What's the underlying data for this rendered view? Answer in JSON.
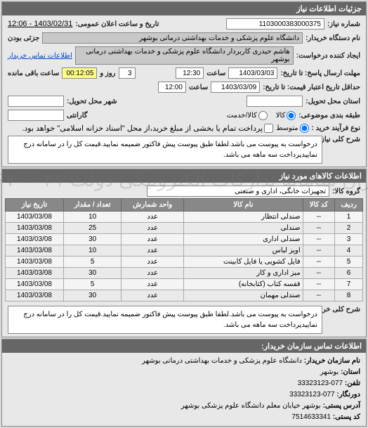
{
  "watermark": "ستاد ایران\nسامانه تدارکات الکترونیکی دولت\n۰۲۱-۸۸۳۴۹۶۷۰",
  "panel1": {
    "title": "جزئیات اطلاعات نیاز",
    "need_no_label": "شماره نیاز:",
    "need_no": "1103000383000375",
    "announce_label": "تاریخ و ساعت اعلان عمومی:",
    "announce": "1403/02/31 - 12:06",
    "buyer_org_label": "نام دستگاه خریدار:",
    "buyer_org": "دانشگاه علوم پزشکی و خدمات بهداشتی درمانی بوشهر",
    "branch_label": "جزئی بودن",
    "requester_label": "ایجاد کننده درخواست:",
    "requester": "هاشم حیدری کاربردار دانشگاه علوم پزشکی و خدمات بهداشتی درمانی بوشهر",
    "contact_link": "اطلاعات تماس خریدار",
    "deadline_send_label": "مهلت ارسال پاسخ: تا تاریخ:",
    "deadline_date": "1403/03/03",
    "time_label": "ساعت",
    "deadline_time": "12:30",
    "remain_days": "3",
    "remain_days_label": "روز و",
    "remain_time": "00:12:05",
    "remain_time_label": "ساعت باقی مانده",
    "price_valid_label": "حداقل تاریخ اعتبار قیمت: تا تاریخ:",
    "price_valid_date": "1403/03/09",
    "price_valid_time": "12:00",
    "delivery_loc_label": "استان محل تحویل:",
    "delivery_city_label": "شهر محل تحویل:",
    "category_label": "طبقه بندی موضوعی:",
    "cat_option1": "کالا",
    "cat_option2": "کالا/خدمت",
    "warranty_label": "گارانتی",
    "purchase_type_label": "نوع فرآیند خرید :",
    "pt_option1": "متوسط",
    "pt_note": "پرداخت تمام یا بخشی از مبلغ خرید،از محل \"اسناد خزانه اسلامی\" خواهد بود.",
    "desc_label": "شرح کلی نیاز:",
    "desc": "درخواست به پیوست می باشد.لطفا طبق پیوست پیش فاکتور ضمیمه نمایید.قیمت کل را در سامانه درج نماییدپرداخت سه ماهه می باشد."
  },
  "panel2": {
    "title": "اطلاعات کالاهای مورد نیاز",
    "group_label": "گروه کالا:",
    "group": "تجهیزات خانگی، اداری و صنعتی",
    "columns": [
      "ردیف",
      "کد کالا",
      "نام کالا",
      "واحد شمارش",
      "تعداد / مقدار",
      "تاریخ نیاز"
    ],
    "rows": [
      [
        "1",
        "--",
        "صندلی انتظار",
        "عدد",
        "10",
        "1403/03/08"
      ],
      [
        "2",
        "--",
        "صندلی",
        "عدد",
        "25",
        "1403/03/08"
      ],
      [
        "3",
        "--",
        "صندلی اداری",
        "عدد",
        "30",
        "1403/03/08"
      ],
      [
        "4",
        "--",
        "اویز لباس",
        "عدد",
        "10",
        "1403/03/08"
      ],
      [
        "5",
        "--",
        "فایل کشویی یا فایل کابینت",
        "عدد",
        "5",
        "1403/03/08"
      ],
      [
        "6",
        "--",
        "میز اداری و کار",
        "عدد",
        "30",
        "1403/03/08"
      ],
      [
        "7",
        "--",
        "قفسه کتاب (کتابخانه)",
        "عدد",
        "5",
        "1403/03/08"
      ],
      [
        "8",
        "--",
        "صندلی مهمان",
        "عدد",
        "30",
        "1403/03/08"
      ]
    ],
    "buyer_desc_label": "شرح کلی خریدار:",
    "buyer_desc": "درخواست به پیوست می باشد.لطفا طبق پیوست پیش فاکتور ضمیمه نمایید.قیمت کل را در سامانه درج نماییدپرداخت سه ماهه می باشد."
  },
  "panel3": {
    "title": "اطلاعات تماس سازمان خریدار:",
    "org_label": "نام سازمان خریدار:",
    "org": "دانشگاه علوم پزشکی و خدمات بهداشتی درمانی بوشهر",
    "province_label": "استان:",
    "province": "بوشهر",
    "phone_label": "تلفن:",
    "phone": "077-33323123",
    "fax_label": "دورنگار:",
    "fax": "077-33323123",
    "address_label": "آدرس پستی:",
    "address": "بوشهر خیابان معلم دانشگاه علوم پزشکی بوشهر",
    "postal_label": "کد پستی:",
    "postal": "7514633341"
  }
}
